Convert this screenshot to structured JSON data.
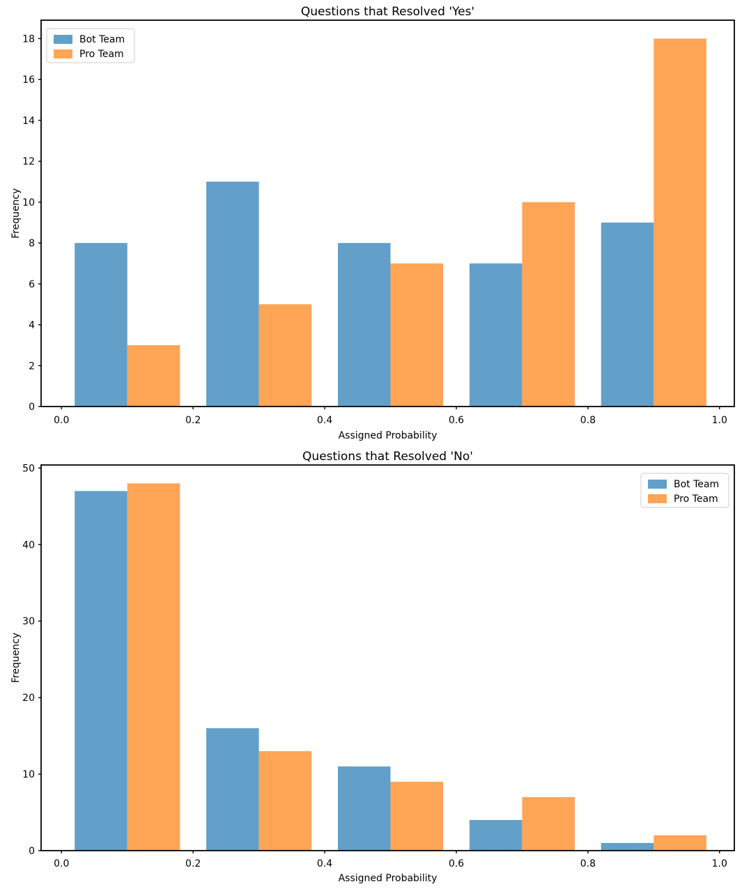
{
  "figure": {
    "background": "#ffffff",
    "text_color": "#000000",
    "spine_color": "#000000",
    "legend_border_color": "#cccccc",
    "legend_background": "#ffffff"
  },
  "chart_data": [
    {
      "type": "bar",
      "variant": "grouped-histogram",
      "title": "Questions that Resolved 'Yes'",
      "xlabel": "Assigned Probability",
      "ylabel": "Frequency",
      "bin_edges": [
        0.0,
        0.2,
        0.4,
        0.6,
        0.8,
        1.0
      ],
      "bar_width": 0.08,
      "group_offset": 0.02,
      "series": [
        {
          "name": "Bot Team",
          "color": "#62A0CA",
          "values": [
            8,
            11,
            8,
            7,
            9
          ]
        },
        {
          "name": "Pro Team",
          "color": "#FFA556",
          "values": [
            3,
            5,
            7,
            10,
            18
          ]
        }
      ],
      "xticks": [
        0.0,
        0.2,
        0.4,
        0.6,
        0.8,
        1.0
      ],
      "xtick_labels": [
        "0.0",
        "0.2",
        "0.4",
        "0.6",
        "0.8",
        "1.0"
      ],
      "yticks": [
        0,
        2,
        4,
        6,
        8,
        10,
        12,
        14,
        16,
        18
      ],
      "ytick_labels": [
        "0",
        "2",
        "4",
        "6",
        "8",
        "10",
        "12",
        "14",
        "16",
        "18"
      ],
      "xlim": [
        -0.031,
        1.0225
      ],
      "ylim": [
        0,
        18.9
      ],
      "legend_position": "upper-left",
      "grid": false
    },
    {
      "type": "bar",
      "variant": "grouped-histogram",
      "title": "Questions that Resolved 'No'",
      "xlabel": "Assigned Probability",
      "ylabel": "Frequency",
      "bin_edges": [
        0.0,
        0.2,
        0.4,
        0.6,
        0.8,
        1.0
      ],
      "bar_width": 0.08,
      "group_offset": 0.02,
      "series": [
        {
          "name": "Bot Team",
          "color": "#62A0CA",
          "values": [
            47,
            16,
            11,
            4,
            1
          ]
        },
        {
          "name": "Pro Team",
          "color": "#FFA556",
          "values": [
            48,
            13,
            9,
            7,
            2
          ]
        }
      ],
      "xticks": [
        0.0,
        0.2,
        0.4,
        0.6,
        0.8,
        1.0
      ],
      "xtick_labels": [
        "0.0",
        "0.2",
        "0.4",
        "0.6",
        "0.8",
        "1.0"
      ],
      "yticks": [
        0,
        10,
        20,
        30,
        40,
        50
      ],
      "ytick_labels": [
        "0",
        "10",
        "20",
        "30",
        "40",
        "50"
      ],
      "xlim": [
        -0.031,
        1.0225
      ],
      "ylim": [
        0,
        50.4
      ],
      "legend_position": "upper-right",
      "grid": false
    }
  ]
}
